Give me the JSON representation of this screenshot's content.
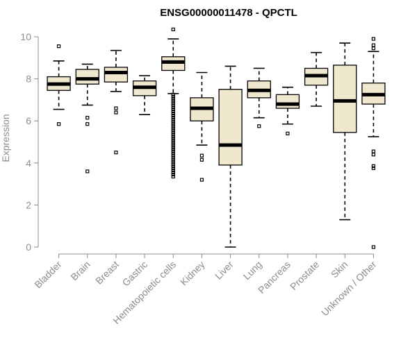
{
  "chart_data": {
    "type": "boxplot",
    "title": "ENSG00000011478 - QPCTL",
    "ylabel": "Expression",
    "xlabel": "",
    "ylim": [
      0,
      10.4
    ],
    "yticks": [
      0,
      2,
      4,
      6,
      8,
      10
    ],
    "box_color": "#efe8cf",
    "categories": [
      "Bladder",
      "Brain",
      "Breast",
      "Gastric",
      "Hematopoietic cells",
      "Kidney",
      "Liver",
      "Lung",
      "Pancreas",
      "Prostate",
      "Skin",
      "Unknown / Other"
    ],
    "boxes": [
      {
        "q1": 7.45,
        "median": 7.75,
        "q3": 8.1,
        "whisker_low": 6.55,
        "whisker_high": 8.85,
        "outliers": [
          9.55,
          5.85
        ]
      },
      {
        "q1": 7.75,
        "median": 8.0,
        "q3": 8.45,
        "whisker_low": 6.75,
        "whisker_high": 8.7,
        "outliers": [
          6.15,
          5.85,
          3.6
        ]
      },
      {
        "q1": 7.85,
        "median": 8.3,
        "q3": 8.55,
        "whisker_low": 7.4,
        "whisker_high": 9.35,
        "outliers": [
          6.6,
          6.4,
          4.5
        ]
      },
      {
        "q1": 7.2,
        "median": 7.6,
        "q3": 7.9,
        "whisker_low": 6.3,
        "whisker_high": 8.15,
        "outliers": []
      },
      {
        "q1": 8.4,
        "median": 8.8,
        "q3": 9.05,
        "whisker_low": 7.3,
        "whisker_high": 9.9,
        "outliers": [
          10.35,
          7.25,
          7.15,
          7.05,
          6.95,
          6.85,
          6.75,
          6.65,
          6.55,
          6.45,
          6.35,
          6.25,
          6.15,
          6.05,
          5.95,
          5.85,
          5.75,
          5.65,
          5.55,
          5.45,
          5.35,
          5.25,
          5.15,
          5.05,
          4.95,
          4.85,
          4.75,
          4.65,
          4.55,
          4.45,
          4.35,
          4.25,
          4.15,
          4.05,
          3.95,
          3.85,
          3.75,
          3.65,
          3.55,
          3.45,
          3.35
        ]
      },
      {
        "q1": 6.0,
        "median": 6.6,
        "q3": 7.1,
        "whisker_low": 4.85,
        "whisker_high": 8.3,
        "outliers": [
          4.35,
          4.15,
          3.2
        ]
      },
      {
        "q1": 3.9,
        "median": 4.85,
        "q3": 7.5,
        "whisker_low": 0.0,
        "whisker_high": 8.6,
        "outliers": []
      },
      {
        "q1": 7.1,
        "median": 7.45,
        "q3": 7.9,
        "whisker_low": 6.15,
        "whisker_high": 8.5,
        "outliers": [
          5.75
        ]
      },
      {
        "q1": 6.6,
        "median": 6.8,
        "q3": 7.25,
        "whisker_low": 5.85,
        "whisker_high": 7.6,
        "outliers": [
          5.4
        ]
      },
      {
        "q1": 7.7,
        "median": 8.15,
        "q3": 8.5,
        "whisker_low": 6.7,
        "whisker_high": 9.25,
        "outliers": []
      },
      {
        "q1": 5.45,
        "median": 6.95,
        "q3": 8.65,
        "whisker_low": 1.3,
        "whisker_high": 9.7,
        "outliers": []
      },
      {
        "q1": 6.8,
        "median": 7.25,
        "q3": 7.8,
        "whisker_low": 5.25,
        "whisker_high": 9.3,
        "outliers": [
          9.9,
          9.6,
          9.45,
          4.55,
          4.4,
          3.85,
          3.75,
          0.0
        ]
      }
    ]
  }
}
